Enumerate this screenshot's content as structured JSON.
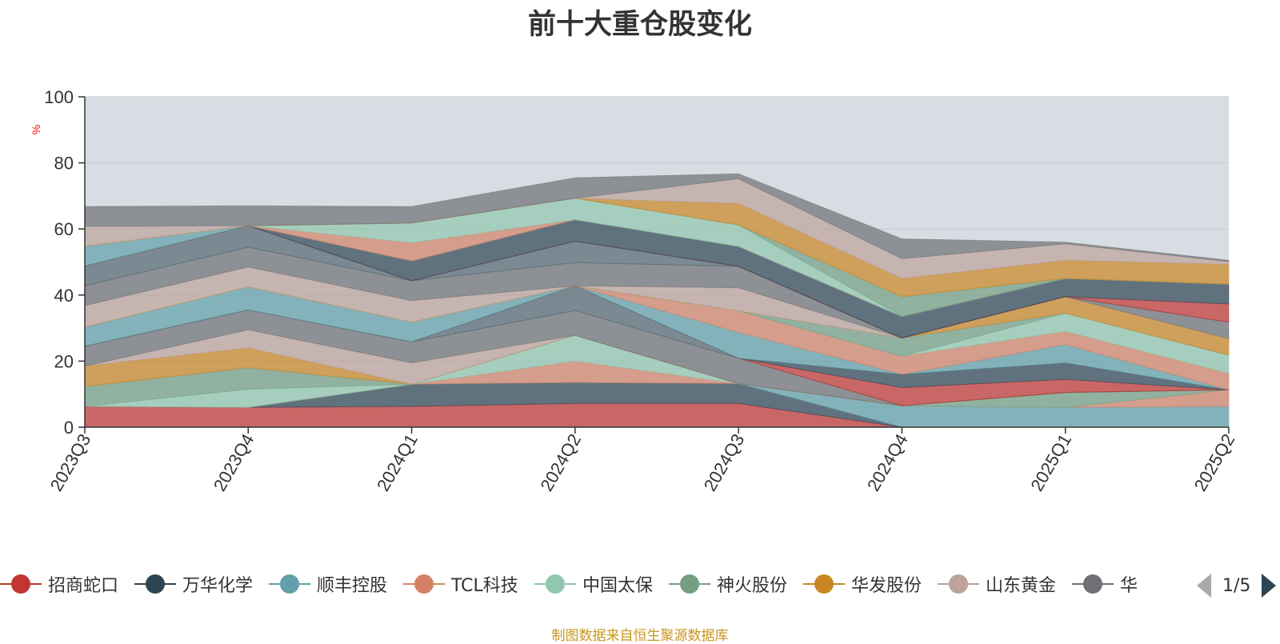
{
  "title": "前十大重仓股变化",
  "footer": "制图数据来自恒生聚源数据库",
  "legend_page": "1/5",
  "chart_data": {
    "type": "area",
    "stacked": true,
    "title": "前十大重仓股变化",
    "ylabel": "%",
    "ylim": [
      0,
      100
    ],
    "yticks": [
      0,
      20,
      40,
      60,
      80,
      100
    ],
    "grid": true,
    "legend_position": "bottom",
    "background": "#d8dde4",
    "categories": [
      "2023Q3",
      "2023Q4",
      "2024Q1",
      "2024Q2",
      "2024Q3",
      "2024Q4",
      "2025Q1",
      "2025Q2"
    ],
    "series": [
      {
        "name": "招商蛇口",
        "color": "#c23531",
        "legend": true,
        "values": [
          6.3,
          6.0,
          6.3,
          7.2,
          7.2,
          0.0,
          0.0,
          0.0
        ]
      },
      {
        "name": "万华化学",
        "color": "#2f4554",
        "legend": true,
        "values": [
          0.0,
          0.0,
          6.7,
          6.3,
          6.0,
          0.0,
          0.0,
          0.0
        ]
      },
      {
        "name": "顺丰控股",
        "color": "#61a0a8",
        "legend": true,
        "values": [
          0.0,
          0.0,
          0.0,
          0.0,
          0.0,
          6.5,
          6.0,
          6.3
        ]
      },
      {
        "name": "TCL科技",
        "color": "#d48265",
        "legend": true,
        "values": [
          0.0,
          0.0,
          0.0,
          6.5,
          0.0,
          0.0,
          0.0,
          5.0
        ]
      },
      {
        "name": "中国太保",
        "color": "#91c7ae",
        "legend": true,
        "values": [
          0.0,
          5.5,
          0.0,
          7.8,
          0.0,
          0.0,
          0.0,
          0.0
        ]
      },
      {
        "name": "神火股份",
        "color": "#749f83",
        "legend": true,
        "values": [
          6.0,
          6.5,
          0.0,
          0.0,
          0.0,
          0.0,
          4.5,
          0.0
        ]
      },
      {
        "name": "华发股份",
        "color": "#ca8622",
        "legend": true,
        "values": [
          6.2,
          6.0,
          0.0,
          0.0,
          0.0,
          0.0,
          0.0,
          0.0
        ]
      },
      {
        "name": "山东黄金",
        "color": "#bda29a",
        "legend": true,
        "values": [
          0.0,
          5.5,
          6.5,
          0.0,
          0.0,
          0.0,
          0.0,
          0.0
        ]
      },
      {
        "name": "华",
        "color": "#6e7074",
        "legend": true,
        "values": [
          6.0,
          6.0,
          6.3,
          7.5,
          7.7,
          0.0,
          0.0,
          0.0
        ]
      },
      {
        "color": "#546570",
        "legend": false,
        "values": [
          0.0,
          0.0,
          0.0,
          7.5,
          0.0,
          0.0,
          0.0,
          0.0
        ]
      },
      {
        "color": "#c23531",
        "legend": false,
        "values": [
          0.0,
          0.0,
          0.0,
          0.0,
          0.0,
          5.5,
          4.0,
          0.0
        ]
      },
      {
        "color": "#2f4554",
        "legend": false,
        "values": [
          0.0,
          0.0,
          0.0,
          0.0,
          0.0,
          4.0,
          5.0,
          0.0
        ]
      },
      {
        "color": "#61a0a8",
        "legend": false,
        "values": [
          5.8,
          7.0,
          6.0,
          0.0,
          7.8,
          0.0,
          5.5,
          0.0
        ]
      },
      {
        "color": "#d48265",
        "legend": false,
        "values": [
          0.0,
          0.0,
          0.0,
          0.0,
          6.5,
          5.5,
          4.0,
          5.0
        ]
      },
      {
        "color": "#91c7ae",
        "legend": false,
        "values": [
          0.0,
          0.0,
          0.0,
          0.0,
          0.0,
          0.0,
          5.5,
          5.5
        ]
      },
      {
        "color": "#749f83",
        "legend": false,
        "values": [
          0.0,
          0.0,
          0.0,
          0.0,
          0.0,
          5.5,
          0.0,
          0.0
        ]
      },
      {
        "color": "#ca8622",
        "legend": false,
        "values": [
          0.0,
          0.0,
          0.0,
          0.0,
          0.0,
          0.0,
          5.0,
          5.0
        ]
      },
      {
        "color": "#bda29a",
        "legend": false,
        "values": [
          6.5,
          6.0,
          6.5,
          0.0,
          7.0,
          0.0,
          0.0,
          0.0
        ]
      },
      {
        "color": "#6e7074",
        "legend": false,
        "values": [
          6.0,
          6.0,
          6.0,
          7.0,
          6.5,
          0.0,
          0.0,
          5.0
        ]
      },
      {
        "color": "#546570",
        "legend": false,
        "values": [
          6.0,
          6.5,
          0.0,
          6.5,
          0.0,
          0.0,
          0.0,
          0.0
        ]
      },
      {
        "color": "#c23531",
        "legend": false,
        "values": [
          0.0,
          0.0,
          0.0,
          0.0,
          0.0,
          0.0,
          0.0,
          5.5
        ]
      },
      {
        "color": "#2f4554",
        "legend": false,
        "values": [
          0.0,
          0.0,
          6.0,
          6.5,
          6.0,
          6.5,
          5.5,
          6.0
        ]
      },
      {
        "color": "#61a0a8",
        "legend": false,
        "values": [
          6.0,
          0.0,
          0.0,
          0.0,
          0.0,
          0.0,
          0.0,
          0.0
        ]
      },
      {
        "color": "#d48265",
        "legend": false,
        "values": [
          0.0,
          0.0,
          5.5,
          0.0,
          0.0,
          0.0,
          0.0,
          0.0
        ]
      },
      {
        "color": "#91c7ae",
        "legend": false,
        "values": [
          0.0,
          0.0,
          6.0,
          6.5,
          6.5,
          0.0,
          0.0,
          0.0
        ]
      },
      {
        "color": "#749f83",
        "legend": false,
        "values": [
          0.0,
          0.0,
          0.0,
          0.0,
          0.0,
          6.0,
          0.0,
          0.0
        ]
      },
      {
        "color": "#ca8622",
        "legend": false,
        "values": [
          0.0,
          0.0,
          0.0,
          0.0,
          6.5,
          5.5,
          5.5,
          6.0
        ]
      },
      {
        "color": "#bda29a",
        "legend": false,
        "values": [
          6.0,
          0.0,
          0.0,
          0.0,
          7.5,
          6.0,
          5.0,
          0.8
        ]
      },
      {
        "color": "#6e7074",
        "legend": false,
        "values": [
          6.0,
          6.0,
          5.0,
          6.2,
          1.5,
          6.0,
          0.5,
          0.4
        ]
      }
    ]
  }
}
